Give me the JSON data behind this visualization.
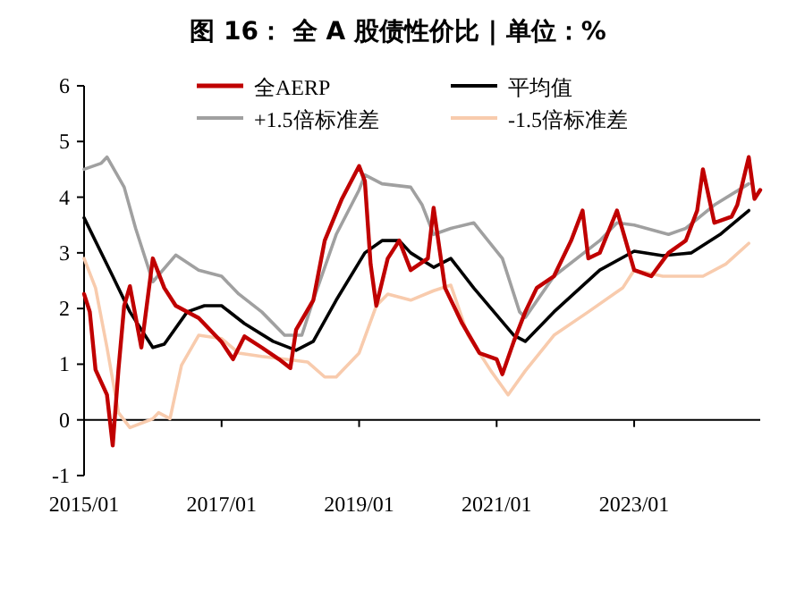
{
  "chart_data": {
    "type": "line",
    "title": "图 16： 全 A 股债性价比 | 单位：%",
    "xlim": [
      "2015-01",
      "2024-11"
    ],
    "xticks": [
      {
        "value": "2015-01",
        "label": "2015/01"
      },
      {
        "value": "2017-01",
        "label": "2017/01"
      },
      {
        "value": "2019-01",
        "label": "2019/01"
      },
      {
        "value": "2021-01",
        "label": "2021/01"
      },
      {
        "value": "2023-01",
        "label": "2023/01"
      }
    ],
    "ylim": [
      -1,
      6
    ],
    "yticks": [
      -1,
      0,
      1,
      2,
      3,
      4,
      5,
      6
    ],
    "legend": "top",
    "marker": "none",
    "series": [
      {
        "name": "全AERP",
        "color": "#c00000",
        "x": [
          "2015-01",
          "2015-02",
          "2015-03",
          "2015-05",
          "2015-06",
          "2015-07",
          "2015-08",
          "2015-09",
          "2015-11",
          "2016-01",
          "2016-03",
          "2016-05",
          "2016-09",
          "2017-01",
          "2017-03",
          "2017-05",
          "2017-08",
          "2017-11",
          "2018-01",
          "2018-02",
          "2018-05",
          "2018-07",
          "2018-10",
          "2019-01",
          "2019-02",
          "2019-03",
          "2019-04",
          "2019-06",
          "2019-08",
          "2019-10",
          "2020-01",
          "2020-02",
          "2020-04",
          "2020-07",
          "2020-10",
          "2021-01",
          "2021-02",
          "2021-04",
          "2021-06",
          "2021-08",
          "2021-11",
          "2022-02",
          "2022-04",
          "2022-05",
          "2022-07",
          "2022-10",
          "2023-01",
          "2023-04",
          "2023-07",
          "2023-10",
          "2023-12",
          "2024-01",
          "2024-03",
          "2024-06",
          "2024-07",
          "2024-09",
          "2024-10",
          "2024-11"
        ],
        "values": [
          2.26,
          1.94,
          0.9,
          0.45,
          -0.46,
          0.9,
          2.05,
          2.4,
          1.3,
          2.9,
          2.37,
          2.05,
          1.83,
          1.4,
          1.09,
          1.5,
          1.3,
          1.09,
          0.93,
          1.62,
          2.15,
          3.22,
          3.97,
          4.56,
          4.29,
          2.8,
          2.05,
          2.9,
          3.22,
          2.69,
          2.9,
          3.81,
          2.37,
          1.73,
          1.2,
          1.09,
          0.82,
          1.41,
          1.94,
          2.37,
          2.58,
          3.22,
          3.76,
          2.9,
          3.0,
          3.76,
          2.69,
          2.58,
          3.0,
          3.22,
          3.76,
          4.5,
          3.54,
          3.65,
          3.86,
          4.72,
          3.97,
          4.13
        ]
      },
      {
        "name": "平均值",
        "color": "#000000",
        "x": [
          "2015-01",
          "2015-06",
          "2015-09",
          "2016-01",
          "2016-03",
          "2016-07",
          "2016-10",
          "2017-01",
          "2017-05",
          "2017-10",
          "2018-02",
          "2018-05",
          "2018-09",
          "2019-02",
          "2019-05",
          "2019-08",
          "2019-10",
          "2020-02",
          "2020-05",
          "2020-09",
          "2021-04",
          "2021-06",
          "2021-11",
          "2022-07",
          "2023-01",
          "2023-06",
          "2023-11",
          "2024-04",
          "2024-09"
        ],
        "values": [
          3.63,
          2.58,
          1.94,
          1.3,
          1.36,
          1.94,
          2.05,
          2.05,
          1.73,
          1.41,
          1.25,
          1.41,
          2.15,
          3.0,
          3.22,
          3.22,
          3.0,
          2.74,
          2.9,
          2.37,
          1.52,
          1.41,
          1.94,
          2.69,
          3.03,
          2.95,
          3.0,
          3.33,
          3.76
        ]
      },
      {
        "name": "+1.5倍标准差",
        "color": "#a0a0a0",
        "x": [
          "2015-01",
          "2015-04",
          "2015-05",
          "2015-08",
          "2015-10",
          "2016-01",
          "2016-05",
          "2016-09",
          "2017-01",
          "2017-04",
          "2017-08",
          "2017-12",
          "2018-03",
          "2018-05",
          "2018-09",
          "2019-01",
          "2019-02",
          "2019-05",
          "2019-10",
          "2019-12",
          "2020-02",
          "2020-05",
          "2020-09",
          "2021-02",
          "2021-05",
          "2021-06",
          "2021-11",
          "2022-07",
          "2022-10",
          "2023-01",
          "2023-07",
          "2023-10",
          "2024-03",
          "2024-09"
        ],
        "values": [
          4.5,
          4.61,
          4.72,
          4.18,
          3.44,
          2.48,
          2.96,
          2.69,
          2.58,
          2.26,
          1.94,
          1.52,
          1.52,
          2.15,
          3.33,
          4.13,
          4.4,
          4.24,
          4.18,
          3.86,
          3.33,
          3.44,
          3.54,
          2.9,
          1.94,
          1.84,
          2.58,
          3.22,
          3.54,
          3.5,
          3.33,
          3.44,
          3.86,
          4.24
        ]
      },
      {
        "name": "-1.5倍标准差",
        "color": "#f8cbad",
        "x": [
          "2015-01",
          "2015-03",
          "2015-05",
          "2015-07",
          "2015-09",
          "2016-01",
          "2016-02",
          "2016-04",
          "2016-06",
          "2016-09",
          "2017-01",
          "2017-04",
          "2017-08",
          "2017-12",
          "2018-04",
          "2018-07",
          "2018-09",
          "2019-01",
          "2019-04",
          "2019-06",
          "2019-10",
          "2020-02",
          "2020-05",
          "2020-08",
          "2020-12",
          "2021-03",
          "2021-06",
          "2021-11",
          "2022-05",
          "2022-11",
          "2023-01",
          "2023-06",
          "2024-01",
          "2024-05",
          "2024-09"
        ],
        "values": [
          2.9,
          2.37,
          1.3,
          0.13,
          -0.14,
          0.02,
          0.13,
          0.02,
          0.98,
          1.52,
          1.46,
          1.2,
          1.14,
          1.09,
          1.04,
          0.77,
          0.77,
          1.2,
          2.05,
          2.26,
          2.15,
          2.32,
          2.42,
          1.52,
          0.88,
          0.45,
          0.88,
          1.52,
          1.94,
          2.37,
          2.69,
          2.58,
          2.58,
          2.8,
          3.17
        ]
      }
    ]
  }
}
